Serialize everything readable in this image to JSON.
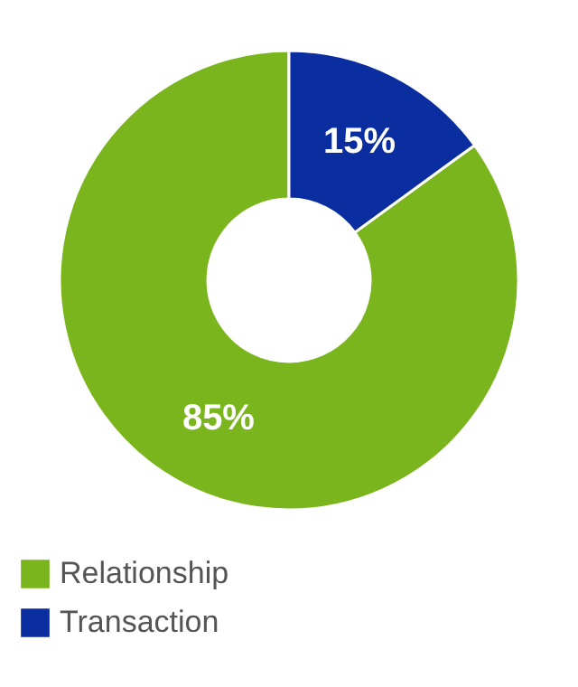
{
  "chart_data": {
    "type": "donut",
    "categories": [
      "Relationship",
      "Transaction"
    ],
    "values": [
      85,
      15
    ],
    "colors": [
      "#7ab51d",
      "#0a2ea0"
    ],
    "value_labels": [
      "85%",
      "15%"
    ],
    "legend": "bottom"
  }
}
